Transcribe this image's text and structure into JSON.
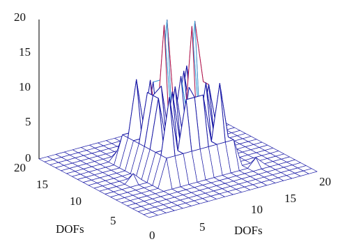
{
  "chart_data": {
    "type": "surface-mesh",
    "title": "",
    "xlabel": "DOFs",
    "ylabel": "DOFs",
    "zlabel": "",
    "x_range": [
      0,
      20
    ],
    "y_range": [
      0,
      20
    ],
    "zlim": [
      0,
      20
    ],
    "z_ticks": [
      "0",
      "5",
      "10",
      "15",
      "20"
    ],
    "x_ticks": [
      "0",
      "5",
      "10",
      "15",
      "20"
    ],
    "y_ticks": [
      "5",
      "10",
      "15",
      "20"
    ],
    "grid_size": 21,
    "mesh_color": "#1a1aa6",
    "peak_color": "#b0124a",
    "highlight_color": "#3aa0d8",
    "surface_description_values": {
      "peak_height": 20,
      "secondary_peak_height": 12,
      "base_height": 0,
      "peak_center": [
        10,
        10
      ]
    }
  }
}
